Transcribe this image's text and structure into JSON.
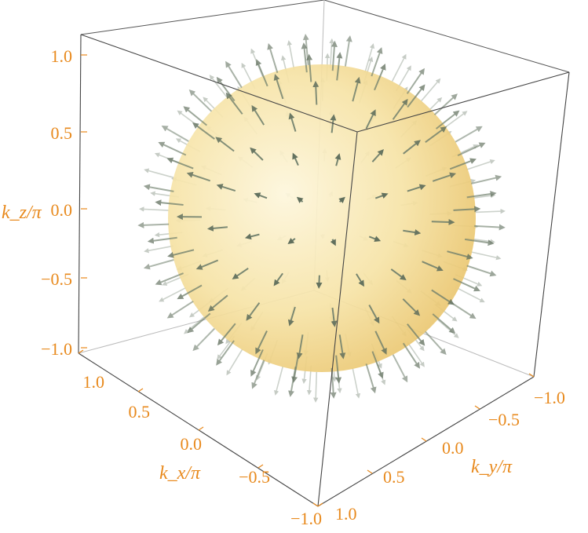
{
  "chart_data": {
    "type": "vector-field-3d",
    "surface": "sphere",
    "field": "radial unit vectors",
    "xlabel": "k_x/π",
    "ylabel": "k_y/π",
    "zlabel": "k_z/π",
    "x_ticks": [
      "1.0",
      "0.5",
      "0.0",
      "−0.5",
      "−1.0"
    ],
    "y_ticks": [
      "−1.0",
      "−0.5",
      "0.0",
      "0.5",
      "1.0"
    ],
    "z_ticks": [
      "1.0",
      "0.5",
      "0.0",
      "−0.5",
      "−1.0"
    ],
    "xlim": [
      -1,
      1
    ],
    "ylim": [
      -1,
      1
    ],
    "zlim": [
      -1,
      1
    ],
    "colors": {
      "sphere": "#f4d98c",
      "arrow": "#6f7f6c",
      "tick": "#e8891c",
      "box": "#444444"
    }
  }
}
